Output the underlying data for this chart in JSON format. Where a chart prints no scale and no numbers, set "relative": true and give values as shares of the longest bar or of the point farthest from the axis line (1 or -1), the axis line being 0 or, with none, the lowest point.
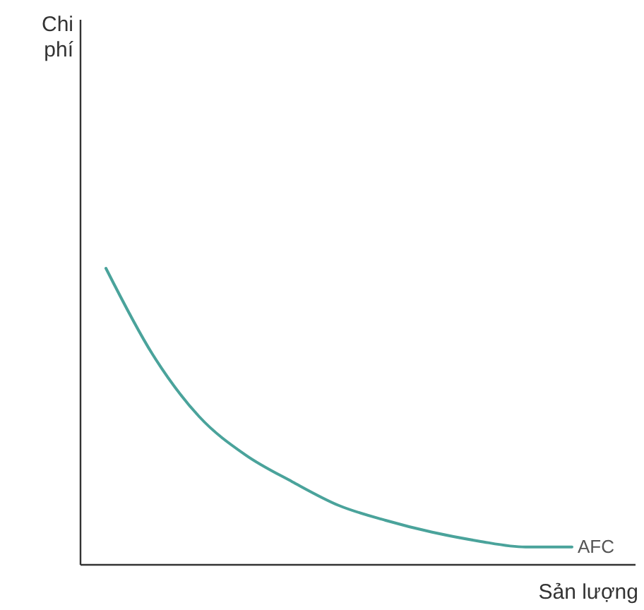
{
  "chart_data": {
    "type": "line",
    "relative": true,
    "xlabel": "Sản lượng",
    "annotations": [
      "Chi phí"
    ],
    "categories": [
      null,
      null,
      null,
      null,
      null,
      null,
      null,
      null,
      null,
      null,
      null
    ],
    "series": [
      {
        "name": "AFC",
        "color": "#4aa39b",
        "values": [
          1,
          0.71,
          0.5,
          0.37,
          0.28,
          0.2,
          0.15,
          0.11,
          0.08,
          0.06,
          0.06
        ]
      }
    ],
    "marker": "none",
    "line_style": "solid"
  }
}
